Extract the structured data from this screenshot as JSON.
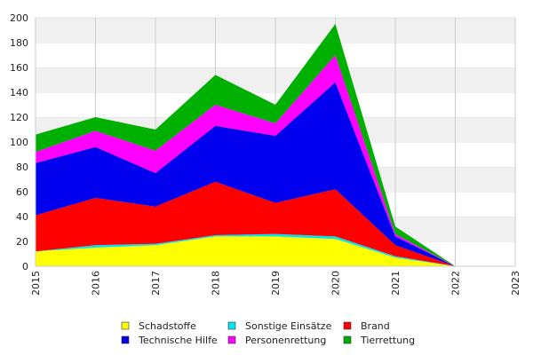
{
  "chart_data": {
    "type": "area",
    "stacked": true,
    "x": [
      "2015",
      "2016",
      "2017",
      "2018",
      "2019",
      "2020",
      "2021",
      "2022",
      "2023"
    ],
    "ylim": [
      0,
      200
    ],
    "yticks": [
      "0",
      "20",
      "40",
      "60",
      "80",
      "100",
      "120",
      "140",
      "160",
      "180",
      "200"
    ],
    "grid": "on",
    "legend_position": "bottom",
    "series": [
      {
        "name": "Schadstoffe",
        "color": "#ffff00",
        "values": [
          12,
          15,
          17,
          24,
          24,
          22,
          7,
          0,
          null
        ]
      },
      {
        "name": "Sonstige Einsätze",
        "color": "#00e5ee",
        "values": [
          0,
          2,
          1,
          1,
          2,
          2,
          1,
          0,
          null
        ]
      },
      {
        "name": "Brand",
        "color": "#ff0000",
        "values": [
          29,
          38,
          30,
          43,
          25,
          38,
          9,
          0,
          null
        ]
      },
      {
        "name": "Technische Hilfe",
        "color": "#0000ee",
        "values": [
          42,
          41,
          27,
          45,
          54,
          86,
          7,
          0,
          null
        ]
      },
      {
        "name": "Personenrettung",
        "color": "#ff00ff",
        "values": [
          9,
          13,
          18,
          17,
          10,
          22,
          2,
          0,
          null
        ]
      },
      {
        "name": "Tierrettung",
        "color": "#00b000",
        "values": [
          14,
          11,
          17,
          24,
          15,
          25,
          6,
          0,
          null
        ]
      }
    ]
  }
}
